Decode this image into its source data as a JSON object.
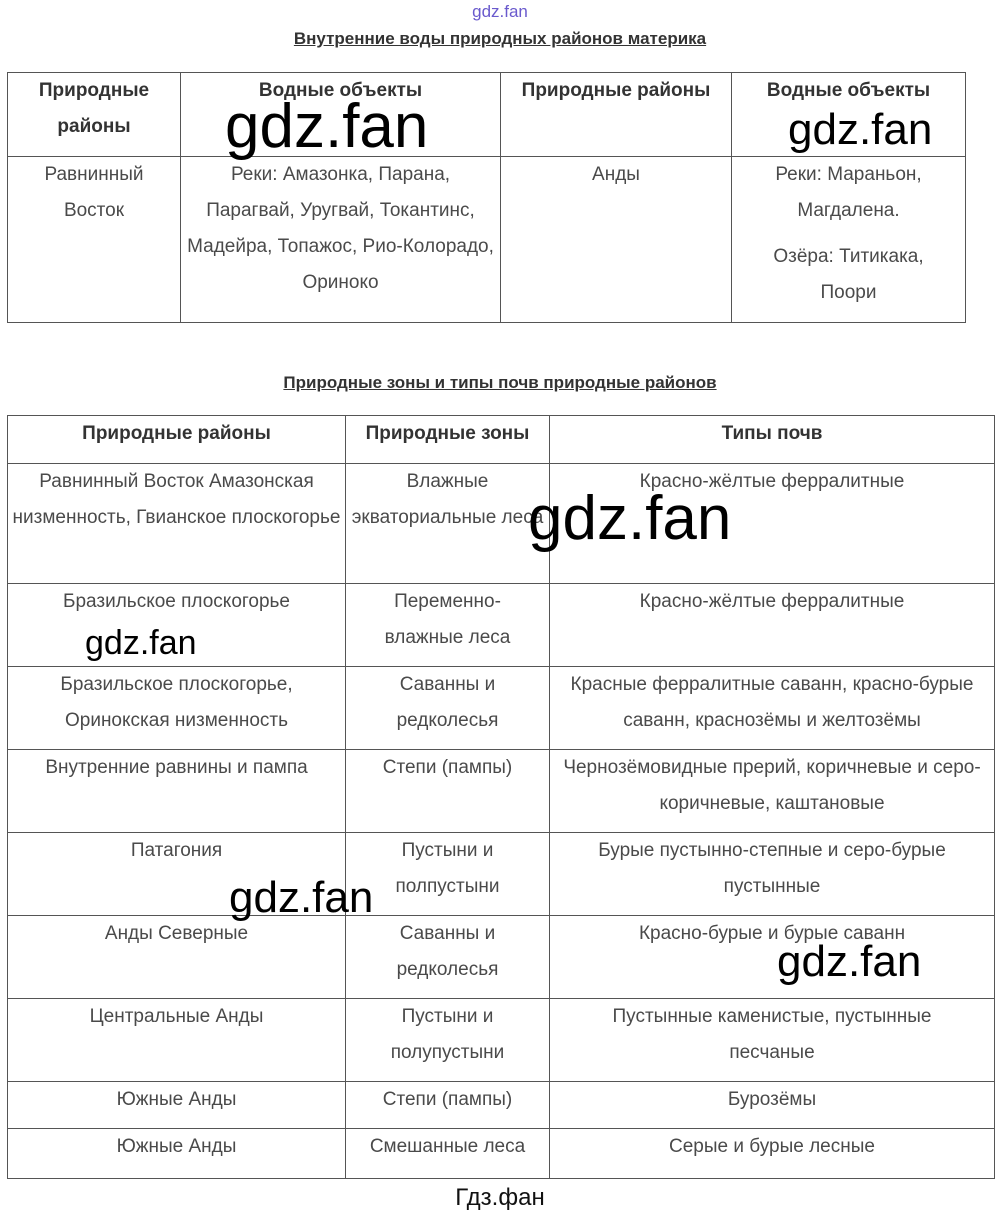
{
  "watermark_top": "gdz.fan",
  "watermark": "gdz.fan",
  "footer": "Гдз.фан",
  "table1": {
    "title": "Внутренние воды природных районов материка",
    "headers": [
      "Природные районы",
      "Водные объекты",
      "Природные районы",
      "Водные объекты"
    ],
    "row": {
      "region1": "Равнинный Восток",
      "water1": "Реки: Амазонка, Парана, Парагвай, Уругвай, Токантинс, Мадейра, Топажос, Рио-Колорадо, Ориноко",
      "region2": "Анды",
      "water2_rivers": "Реки: Мараньон, Магдалена.",
      "water2_lakes": "Озёра: Титикака, Поори"
    }
  },
  "table2": {
    "title": "Природные зоны и типы почв природные районов",
    "headers": [
      "Природные районы",
      "Природные зоны",
      "Типы почв"
    ],
    "rows": [
      {
        "region": "Равнинный Восток Амазонская низменность, Гвианское плоскогорье",
        "zone": "Влажные экваториальные леса",
        "soil": "Красно-жёлтые ферралитные"
      },
      {
        "region": "Бразильское плоскогорье",
        "zone": "Переменно-влажные леса",
        "soil": "Красно-жёлтые ферралитные"
      },
      {
        "region": "Бразильское плоскогорье, Оринокская низменность",
        "zone": "Саванны и редколесья",
        "soil": "Красные ферралитные саванн, красно-бурые саванн, краснозёмы и желтозёмы"
      },
      {
        "region": "Внутренние равнины и пампа",
        "zone": "Степи (пампы)",
        "soil": "Чернозёмовидные прерий, коричневые и серо-коричневые, каштановые"
      },
      {
        "region": "Патагония",
        "zone": "Пустыни и полпустыни",
        "soil": "Бурые пустынно-степные и серо-бурые пустынные"
      },
      {
        "region": "Анды Северные",
        "zone": "Саванны и редколесья",
        "soil": "Красно-бурые и бурые саванн"
      },
      {
        "region": "Центральные Анды",
        "zone": "Пустыни и полупустыни",
        "soil": "Пустынные каменистые, пустынные песчаные"
      },
      {
        "region": "Южные Анды",
        "zone": "Степи (пампы)",
        "soil": "Бурозёмы"
      },
      {
        "region": "Южные Анды",
        "zone": "Смешанные леса",
        "soil": "Серые и бурые лесные"
      }
    ]
  }
}
